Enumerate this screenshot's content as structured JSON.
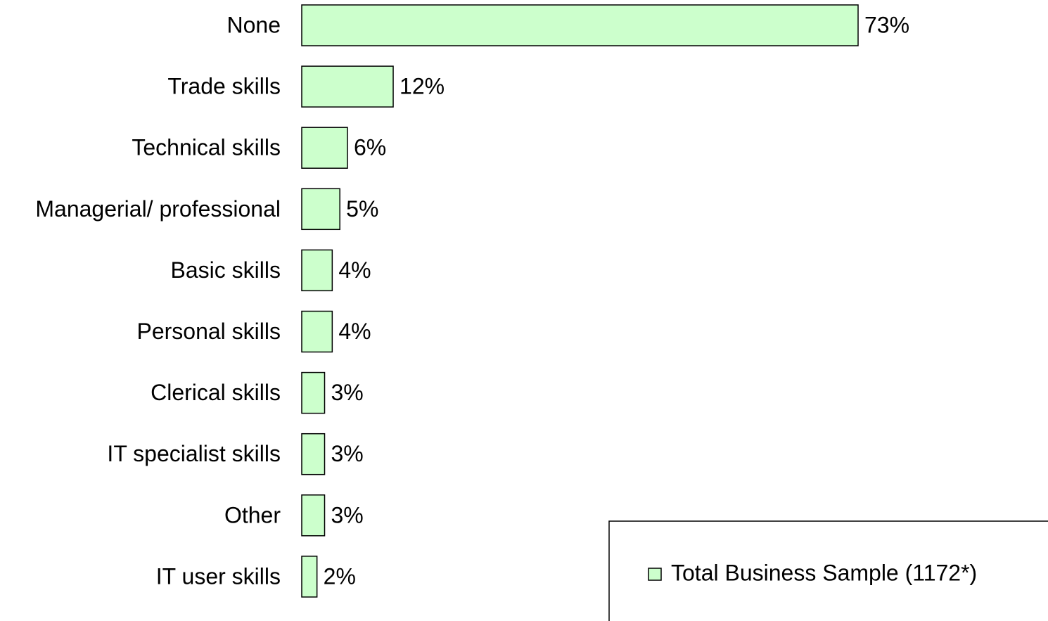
{
  "chart_data": {
    "type": "bar",
    "orientation": "horizontal",
    "categories": [
      "None",
      "Trade skills",
      "Technical skills",
      "Managerial/ professional",
      "Basic skills",
      "Personal skills",
      "Clerical skills",
      "IT specialist skills",
      "Other",
      "IT user skills"
    ],
    "series": [
      {
        "name": "Total Business Sample (1172*)",
        "color": "#ccffcc",
        "values": [
          73,
          12,
          6,
          5,
          4,
          4,
          3,
          3,
          3,
          2
        ],
        "value_labels": [
          "73%",
          "12%",
          "6%",
          "5%",
          "4%",
          "4%",
          "3%",
          "3%",
          "3%",
          "2%"
        ]
      }
    ],
    "legend": "bottom-right"
  }
}
